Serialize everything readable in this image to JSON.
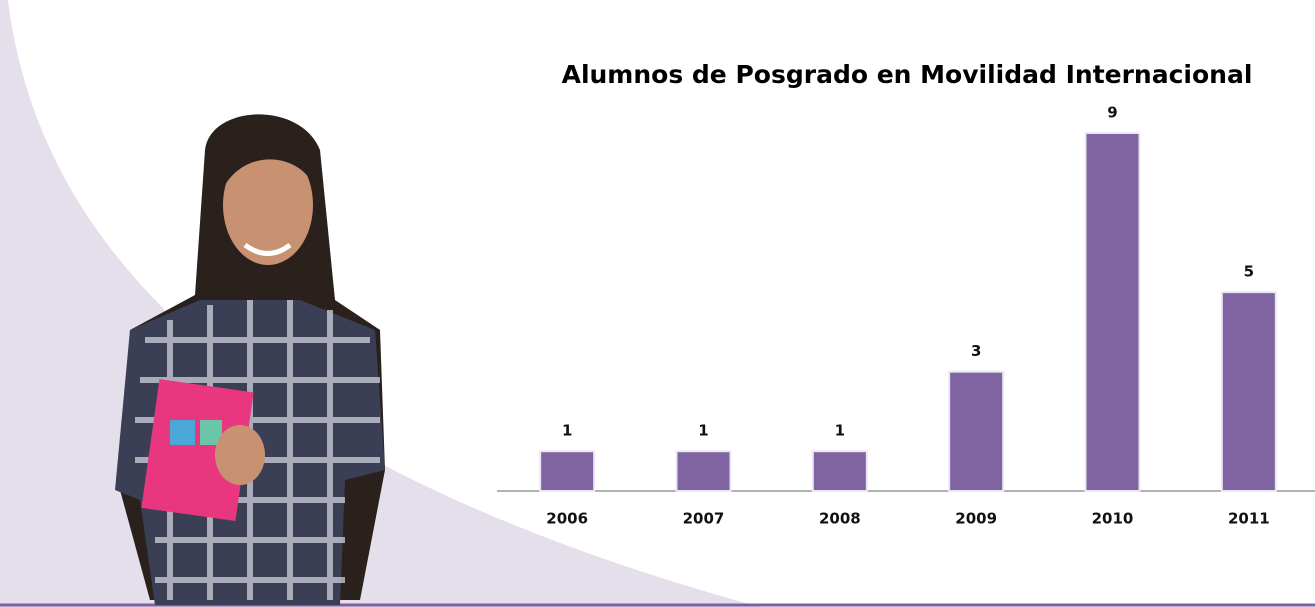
{
  "chart_data": {
    "type": "bar",
    "title": "Alumnos de Posgrado en Movilidad Internacional",
    "categories": [
      "2006",
      "2007",
      "2008",
      "2009",
      "2010",
      "2011"
    ],
    "values": [
      1,
      1,
      1,
      3,
      9,
      5
    ],
    "color": "#8064a2",
    "ylim": [
      0,
      9
    ]
  }
}
